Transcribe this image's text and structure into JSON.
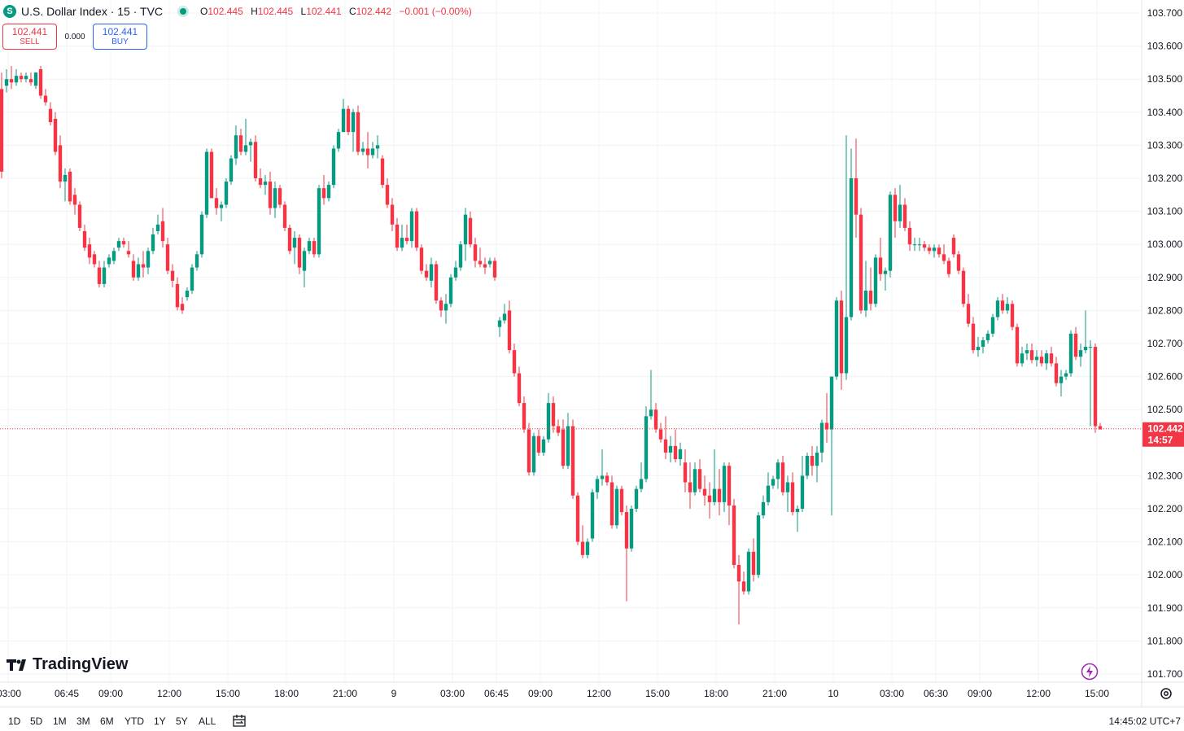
{
  "legend": {
    "symbol_badge": "S",
    "title": "U.S. Dollar Index · 15 · TVC",
    "o_label": "O",
    "o": "102.445",
    "h_label": "H",
    "h": "102.445",
    "l_label": "L",
    "l": "102.441",
    "c_label": "C",
    "c": "102.442",
    "change": "−0.001 (−0.00%)"
  },
  "trade": {
    "sell_price": "102.441",
    "sell_label": "SELL",
    "spread": "0.000",
    "buy_price": "102.441",
    "buy_label": "BUY"
  },
  "brand": {
    "name": "TradingView"
  },
  "last_price": {
    "value": "102.442",
    "countdown": "14:57"
  },
  "range_buttons": [
    "1D",
    "5D",
    "1M",
    "3M",
    "6M",
    "YTD",
    "1Y",
    "5Y",
    "ALL"
  ],
  "clock": "14:45:02 UTC+7",
  "icons": {
    "bolt": "lightning-icon",
    "settings": "gear-icon",
    "goto_date": "calendar-range-icon"
  },
  "colors": {
    "up": "#089981",
    "down": "#f23645",
    "last_price_line": "#f23645"
  },
  "chart_data": {
    "type": "candlestick",
    "ylim": [
      101.66,
      103.74
    ],
    "y_ticks": [
      "103.700",
      "103.600",
      "103.500",
      "103.400",
      "103.300",
      "103.200",
      "103.100",
      "103.000",
      "102.900",
      "102.800",
      "102.700",
      "102.600",
      "102.500",
      "102.300",
      "102.200",
      "102.100",
      "102.000",
      "101.900",
      "101.800",
      "101.700"
    ],
    "x_ticks": [
      "03:00",
      "06:45",
      "09:00",
      "12:00",
      "15:00",
      "18:00",
      "21:00",
      "9",
      "03:00",
      "06:45",
      "09:00",
      "12:00",
      "15:00",
      "18:00",
      "21:00",
      "10",
      "03:00",
      "06:30",
      "09:00",
      "12:00",
      "15:00"
    ],
    "x_tick_slots": [
      0,
      12,
      21,
      33,
      45,
      57,
      69,
      79,
      91,
      100,
      109,
      121,
      133,
      145,
      157,
      169,
      181,
      190,
      199,
      211,
      223
    ],
    "last_price": 102.442,
    "candles": [
      [
        103.47,
        103.52,
        103.2,
        103.22
      ],
      [
        103.48,
        103.53,
        103.46,
        103.5
      ],
      [
        103.5,
        103.54,
        103.47,
        103.49
      ],
      [
        103.49,
        103.53,
        103.48,
        103.51
      ],
      [
        103.51,
        103.52,
        103.49,
        103.5
      ],
      [
        103.5,
        103.52,
        103.49,
        103.51
      ],
      [
        103.5,
        103.52,
        103.48,
        103.49
      ],
      [
        103.48,
        103.52,
        103.47,
        103.52
      ],
      [
        103.53,
        103.54,
        103.44,
        103.45
      ],
      [
        103.45,
        103.47,
        103.42,
        103.43
      ],
      [
        103.41,
        103.43,
        103.36,
        103.37
      ],
      [
        103.38,
        103.4,
        103.27,
        103.28
      ],
      [
        103.3,
        103.33,
        103.17,
        103.19
      ],
      [
        103.19,
        103.23,
        103.13,
        103.21
      ],
      [
        103.22,
        103.23,
        103.12,
        103.13
      ],
      [
        103.15,
        103.17,
        103.09,
        103.12
      ],
      [
        103.12,
        103.13,
        103.04,
        103.05
      ],
      [
        103.04,
        103.06,
        102.98,
        102.99
      ],
      [
        103.0,
        103.02,
        102.94,
        102.96
      ],
      [
        102.97,
        102.98,
        102.93,
        102.94
      ],
      [
        102.93,
        102.95,
        102.87,
        102.88
      ],
      [
        102.88,
        102.95,
        102.87,
        102.93
      ],
      [
        102.94,
        102.97,
        102.93,
        102.96
      ],
      [
        102.95,
        102.99,
        102.94,
        102.98
      ],
      [
        102.99,
        103.02,
        102.98,
        103.01
      ],
      [
        103.01,
        103.02,
        102.99,
        103.0
      ],
      [
        102.98,
        103.01,
        102.96,
        102.97
      ],
      [
        102.95,
        102.97,
        102.89,
        102.9
      ],
      [
        102.9,
        102.96,
        102.89,
        102.94
      ],
      [
        102.94,
        102.98,
        102.9,
        102.93
      ],
      [
        102.93,
        102.99,
        102.91,
        102.98
      ],
      [
        102.98,
        103.05,
        102.97,
        103.03
      ],
      [
        103.04,
        103.09,
        103.03,
        103.06
      ],
      [
        103.07,
        103.11,
        102.99,
        103.01
      ],
      [
        103.0,
        103.02,
        102.91,
        102.92
      ],
      [
        102.92,
        102.94,
        102.87,
        102.89
      ],
      [
        102.88,
        102.9,
        102.8,
        102.81
      ],
      [
        102.82,
        102.84,
        102.79,
        102.8
      ],
      [
        102.84,
        102.87,
        102.83,
        102.86
      ],
      [
        102.86,
        102.94,
        102.85,
        102.93
      ],
      [
        102.93,
        102.98,
        102.92,
        102.97
      ],
      [
        102.97,
        103.1,
        102.96,
        103.09
      ],
      [
        103.09,
        103.29,
        103.08,
        103.28
      ],
      [
        103.28,
        103.29,
        103.14,
        103.14
      ],
      [
        103.14,
        103.17,
        103.09,
        103.11
      ],
      [
        103.11,
        103.13,
        103.07,
        103.12
      ],
      [
        103.12,
        103.2,
        103.11,
        103.19
      ],
      [
        103.19,
        103.27,
        103.18,
        103.26
      ],
      [
        103.26,
        103.36,
        103.24,
        103.33
      ],
      [
        103.33,
        103.35,
        103.27,
        103.28
      ],
      [
        103.28,
        103.38,
        103.27,
        103.3
      ],
      [
        103.3,
        103.32,
        103.25,
        103.31
      ],
      [
        103.31,
        103.33,
        103.19,
        103.2
      ],
      [
        103.2,
        103.23,
        103.17,
        103.18
      ],
      [
        103.18,
        103.21,
        103.15,
        103.19
      ],
      [
        103.19,
        103.22,
        103.09,
        103.11
      ],
      [
        103.11,
        103.19,
        103.08,
        103.17
      ],
      [
        103.17,
        103.18,
        103.11,
        103.12
      ],
      [
        103.12,
        103.13,
        103.04,
        103.05
      ],
      [
        103.05,
        103.06,
        102.97,
        102.98
      ],
      [
        102.99,
        103.04,
        102.94,
        103.02
      ],
      [
        103.02,
        103.03,
        102.91,
        102.93
      ],
      [
        102.92,
        102.99,
        102.87,
        102.98
      ],
      [
        102.98,
        103.02,
        102.97,
        103.01
      ],
      [
        103.01,
        103.02,
        102.96,
        102.97
      ],
      [
        102.97,
        103.18,
        102.96,
        103.17
      ],
      [
        103.17,
        103.21,
        103.12,
        103.14
      ],
      [
        103.14,
        103.19,
        103.13,
        103.18
      ],
      [
        103.18,
        103.3,
        103.17,
        103.29
      ],
      [
        103.29,
        103.35,
        103.28,
        103.34
      ],
      [
        103.34,
        103.44,
        103.34,
        103.41
      ],
      [
        103.41,
        103.42,
        103.33,
        103.34
      ],
      [
        103.34,
        103.41,
        103.28,
        103.4
      ],
      [
        103.4,
        103.42,
        103.27,
        103.28
      ],
      [
        103.28,
        103.31,
        103.27,
        103.29
      ],
      [
        103.29,
        103.34,
        103.23,
        103.27
      ],
      [
        103.27,
        103.31,
        103.26,
        103.29
      ],
      [
        103.29,
        103.33,
        103.26,
        103.3
      ],
      [
        103.26,
        103.27,
        103.17,
        103.18
      ],
      [
        103.18,
        103.2,
        103.11,
        103.12
      ],
      [
        103.12,
        103.14,
        103.04,
        103.06
      ],
      [
        103.06,
        103.08,
        102.98,
        102.99
      ],
      [
        102.99,
        103.06,
        102.98,
        103.02
      ],
      [
        103.02,
        103.06,
        103.0,
        103.01
      ],
      [
        103.01,
        103.11,
        102.99,
        103.1
      ],
      [
        103.1,
        103.11,
        102.98,
        102.99
      ],
      [
        102.99,
        103.0,
        102.91,
        102.92
      ],
      [
        102.92,
        102.94,
        102.89,
        102.9
      ],
      [
        102.89,
        102.96,
        102.87,
        102.94
      ],
      [
        102.94,
        102.95,
        102.82,
        102.83
      ],
      [
        102.83,
        102.84,
        102.78,
        102.8
      ],
      [
        102.8,
        102.85,
        102.76,
        102.82
      ],
      [
        102.82,
        102.91,
        102.81,
        102.9
      ],
      [
        102.9,
        102.95,
        102.89,
        102.93
      ],
      [
        102.93,
        103.01,
        102.92,
        103.0
      ],
      [
        103.0,
        103.11,
        102.95,
        103.09
      ],
      [
        103.08,
        103.1,
        102.99,
        103.0
      ],
      [
        103.0,
        103.02,
        102.93,
        102.95
      ],
      [
        102.95,
        102.99,
        102.93,
        102.94
      ],
      [
        102.94,
        102.96,
        102.91,
        102.93
      ],
      [
        102.94,
        102.96,
        102.93,
        102.95
      ],
      [
        102.95,
        102.96,
        102.89,
        102.9
      ],
      [
        102.75,
        102.78,
        102.72,
        102.77
      ],
      [
        102.77,
        102.82,
        102.76,
        102.79
      ],
      [
        102.8,
        102.83,
        102.67,
        102.68
      ],
      [
        102.68,
        102.7,
        102.6,
        102.61
      ],
      [
        102.61,
        102.63,
        102.51,
        102.52
      ],
      [
        102.52,
        102.54,
        102.43,
        102.44
      ],
      [
        102.44,
        102.46,
        102.3,
        102.31
      ],
      [
        102.31,
        102.43,
        102.3,
        102.42
      ],
      [
        102.42,
        102.44,
        102.36,
        102.37
      ],
      [
        102.37,
        102.42,
        102.36,
        102.41
      ],
      [
        102.41,
        102.55,
        102.4,
        102.52
      ],
      [
        102.52,
        102.54,
        102.43,
        102.45
      ],
      [
        102.45,
        102.47,
        102.42,
        102.43
      ],
      [
        102.44,
        102.47,
        102.32,
        102.33
      ],
      [
        102.33,
        102.49,
        102.32,
        102.45
      ],
      [
        102.45,
        102.47,
        102.23,
        102.24
      ],
      [
        102.24,
        102.25,
        102.09,
        102.1
      ],
      [
        102.1,
        102.15,
        102.05,
        102.06
      ],
      [
        102.06,
        102.11,
        102.05,
        102.1
      ],
      [
        102.11,
        102.26,
        102.1,
        102.25
      ],
      [
        102.25,
        102.3,
        102.23,
        102.29
      ],
      [
        102.29,
        102.38,
        102.27,
        102.3
      ],
      [
        102.3,
        102.31,
        102.27,
        102.28
      ],
      [
        102.28,
        102.3,
        102.14,
        102.15
      ],
      [
        102.15,
        102.27,
        102.14,
        102.26
      ],
      [
        102.26,
        102.27,
        102.18,
        102.19
      ],
      [
        102.19,
        102.21,
        101.92,
        102.08
      ],
      [
        102.08,
        102.21,
        102.07,
        102.2
      ],
      [
        102.2,
        102.27,
        102.19,
        102.26
      ],
      [
        102.26,
        102.34,
        102.25,
        102.29
      ],
      [
        102.29,
        102.51,
        102.28,
        102.48
      ],
      [
        102.48,
        102.62,
        102.47,
        102.5
      ],
      [
        102.5,
        102.52,
        102.43,
        102.44
      ],
      [
        102.44,
        102.46,
        102.4,
        102.41
      ],
      [
        102.41,
        102.48,
        102.35,
        102.37
      ],
      [
        102.37,
        102.42,
        102.34,
        102.39
      ],
      [
        102.39,
        102.44,
        102.34,
        102.35
      ],
      [
        102.35,
        102.4,
        102.33,
        102.38
      ],
      [
        102.34,
        102.38,
        102.25,
        102.28
      ],
      [
        102.28,
        102.34,
        102.2,
        102.25
      ],
      [
        102.25,
        102.34,
        102.24,
        102.32
      ],
      [
        102.32,
        102.35,
        102.25,
        102.26
      ],
      [
        102.26,
        102.3,
        102.21,
        102.24
      ],
      [
        102.24,
        102.28,
        102.17,
        102.22
      ],
      [
        102.22,
        102.38,
        102.21,
        102.26
      ],
      [
        102.26,
        102.32,
        102.18,
        102.22
      ],
      [
        102.22,
        102.34,
        102.19,
        102.33
      ],
      [
        102.33,
        102.34,
        102.15,
        102.21
      ],
      [
        102.21,
        102.23,
        102.02,
        102.03
      ],
      [
        102.03,
        102.06,
        101.85,
        101.98
      ],
      [
        101.98,
        102.01,
        101.94,
        101.95
      ],
      [
        101.95,
        102.08,
        101.94,
        102.07
      ],
      [
        102.07,
        102.11,
        101.98,
        102.0
      ],
      [
        102.0,
        102.19,
        101.99,
        102.18
      ],
      [
        102.18,
        102.24,
        102.17,
        102.22
      ],
      [
        102.22,
        102.31,
        102.21,
        102.27
      ],
      [
        102.27,
        102.3,
        102.26,
        102.29
      ],
      [
        102.29,
        102.35,
        102.26,
        102.34
      ],
      [
        102.34,
        102.36,
        102.24,
        102.25
      ],
      [
        102.25,
        102.3,
        102.19,
        102.28
      ],
      [
        102.28,
        102.31,
        102.18,
        102.19
      ],
      [
        102.19,
        102.21,
        102.13,
        102.2
      ],
      [
        102.2,
        102.36,
        102.19,
        102.3
      ],
      [
        102.3,
        102.37,
        102.29,
        102.36
      ],
      [
        102.36,
        102.39,
        102.3,
        102.33
      ],
      [
        102.33,
        102.39,
        102.28,
        102.37
      ],
      [
        102.37,
        102.47,
        102.34,
        102.46
      ],
      [
        102.46,
        102.55,
        102.4,
        102.44
      ],
      [
        102.44,
        102.6,
        102.18,
        102.6
      ],
      [
        102.6,
        102.84,
        102.59,
        102.83
      ],
      [
        102.83,
        102.86,
        102.56,
        102.61
      ],
      [
        102.61,
        103.33,
        102.59,
        102.78
      ],
      [
        102.78,
        103.29,
        102.77,
        103.2
      ],
      [
        103.2,
        103.32,
        103.02,
        103.09
      ],
      [
        103.09,
        103.11,
        102.79,
        102.8
      ],
      [
        102.8,
        102.95,
        102.78,
        102.86
      ],
      [
        102.86,
        102.93,
        102.8,
        102.82
      ],
      [
        102.82,
        102.97,
        102.81,
        102.96
      ],
      [
        102.96,
        103.02,
        102.89,
        102.91
      ],
      [
        102.91,
        102.93,
        102.86,
        102.92
      ],
      [
        102.92,
        103.16,
        102.9,
        103.15
      ],
      [
        103.15,
        103.17,
        103.02,
        103.07
      ],
      [
        103.07,
        103.18,
        103.05,
        103.12
      ],
      [
        103.12,
        103.14,
        103.04,
        103.05
      ],
      [
        103.05,
        103.07,
        102.98,
        103.0
      ],
      [
        103.0,
        103.02,
        102.98,
        103.0
      ],
      [
        103.0,
        103.02,
        102.98,
        103.0
      ],
      [
        103.0,
        103.01,
        102.98,
        102.99
      ],
      [
        102.99,
        103.0,
        102.97,
        102.98
      ],
      [
        102.98,
        103.0,
        102.96,
        102.99
      ],
      [
        102.99,
        103.0,
        102.96,
        102.97
      ],
      [
        102.97,
        103.0,
        102.94,
        102.95
      ],
      [
        102.95,
        102.96,
        102.9,
        102.91
      ],
      [
        103.02,
        103.03,
        102.96,
        102.97
      ],
      [
        102.97,
        102.98,
        102.91,
        102.92
      ],
      [
        102.92,
        102.93,
        102.81,
        102.82
      ],
      [
        102.82,
        102.85,
        102.75,
        102.76
      ],
      [
        102.76,
        102.78,
        102.67,
        102.68
      ],
      [
        102.68,
        102.72,
        102.66,
        102.69
      ],
      [
        102.69,
        102.72,
        102.67,
        102.71
      ],
      [
        102.71,
        102.74,
        102.7,
        102.73
      ],
      [
        102.73,
        102.79,
        102.72,
        102.78
      ],
      [
        102.78,
        102.84,
        102.77,
        102.83
      ],
      [
        102.83,
        102.85,
        102.79,
        102.8
      ],
      [
        102.8,
        102.84,
        102.79,
        102.82
      ],
      [
        102.82,
        102.83,
        102.74,
        102.75
      ],
      [
        102.75,
        102.76,
        102.63,
        102.64
      ],
      [
        102.64,
        102.69,
        102.63,
        102.67
      ],
      [
        102.67,
        102.7,
        102.65,
        102.68
      ],
      [
        102.68,
        102.7,
        102.64,
        102.65
      ],
      [
        102.65,
        102.68,
        102.63,
        102.66
      ],
      [
        102.66,
        102.68,
        102.63,
        102.64
      ],
      [
        102.64,
        102.68,
        102.62,
        102.67
      ],
      [
        102.67,
        102.69,
        102.63,
        102.64
      ],
      [
        102.64,
        102.66,
        102.57,
        102.58
      ],
      [
        102.58,
        102.62,
        102.54,
        102.6
      ],
      [
        102.6,
        102.62,
        102.59,
        102.61
      ],
      [
        102.61,
        102.74,
        102.6,
        102.73
      ],
      [
        102.73,
        102.75,
        102.65,
        102.66
      ],
      [
        102.66,
        102.7,
        102.63,
        102.68
      ],
      [
        102.68,
        102.8,
        102.67,
        102.69
      ],
      [
        102.69,
        102.71,
        102.45,
        102.69
      ],
      [
        102.69,
        102.7,
        102.43,
        102.45
      ],
      [
        102.45,
        102.46,
        102.44,
        102.44
      ]
    ]
  }
}
